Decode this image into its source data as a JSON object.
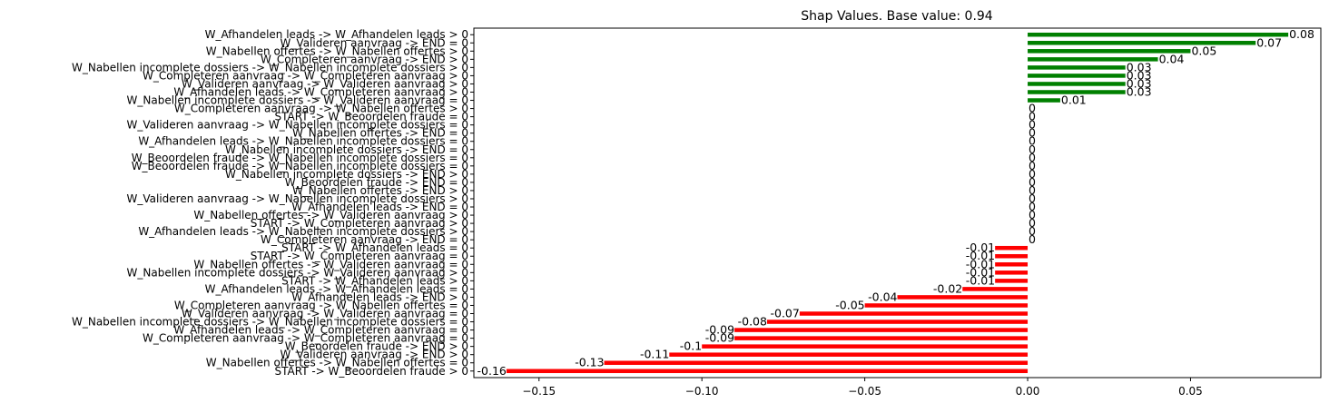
{
  "chart_data": {
    "type": "bar",
    "orientation": "horizontal",
    "title": "Shap Values. Base value: 0.94",
    "xlabel": "",
    "ylabel": "",
    "xlim": [
      -0.17,
      0.09
    ],
    "grid": false,
    "colors": {
      "positive": "#008000",
      "negative": "#ff0000"
    },
    "xticks": [
      {
        "value": -0.15,
        "label": "−0.15"
      },
      {
        "value": -0.1,
        "label": "−0.10"
      },
      {
        "value": -0.05,
        "label": "−0.05"
      },
      {
        "value": 0.0,
        "label": "0.00"
      },
      {
        "value": 0.05,
        "label": "0.05"
      }
    ],
    "bars": [
      {
        "label": "W_Afhandelen leads -> W_Afhandelen leads > 0",
        "value": 0.08,
        "text": "0.08"
      },
      {
        "label": "W_Valideren aanvraag -> END = 0",
        "value": 0.07,
        "text": "0.07"
      },
      {
        "label": "W_Nabellen offertes -> W_Nabellen offertes > 0",
        "value": 0.05,
        "text": "0.05"
      },
      {
        "label": "W_Completeren aanvraag -> END > 0",
        "value": 0.04,
        "text": "0.04"
      },
      {
        "label": "W_Nabellen incomplete dossiers -> W_Nabellen incomplete dossiers > 0",
        "value": 0.03,
        "text": "0.03"
      },
      {
        "label": "W_Completeren aanvraag -> W_Completeren aanvraag > 0",
        "value": 0.03,
        "text": "0.03"
      },
      {
        "label": "W_Valideren aanvraag -> W_Valideren aanvraag > 0",
        "value": 0.03,
        "text": "0.03"
      },
      {
        "label": "W_Afhandelen leads -> W_Completeren aanvraag > 0",
        "value": 0.03,
        "text": "0.03"
      },
      {
        "label": "W_Nabellen incomplete dossiers -> W_Valideren aanvraag = 0",
        "value": 0.01,
        "text": "0.01"
      },
      {
        "label": "W_Completeren aanvraag -> W_Nabellen offertes > 0",
        "value": 0,
        "text": "0"
      },
      {
        "label": "START -> W_Beoordelen fraude = 0",
        "value": 0,
        "text": "0"
      },
      {
        "label": "W_Valideren aanvraag -> W_Nabellen incomplete dossiers = 0",
        "value": 0,
        "text": "0"
      },
      {
        "label": "W_Nabellen offertes -> END = 0",
        "value": 0,
        "text": "0"
      },
      {
        "label": "W_Afhandelen leads -> W_Nabellen incomplete dossiers = 0",
        "value": 0,
        "text": "0"
      },
      {
        "label": "W_Nabellen incomplete dossiers -> END = 0",
        "value": 0,
        "text": "0"
      },
      {
        "label": "W_Beoordelen fraude -> W_Nabellen incomplete dossiers = 0",
        "value": 0,
        "text": "0"
      },
      {
        "label": "W_Beoordelen fraude -> W_Nabellen incomplete dossiers = 0",
        "value": 0,
        "text": "0"
      },
      {
        "label": "W_Nabellen incomplete dossiers -> END > 0",
        "value": 0,
        "text": "0"
      },
      {
        "label": "W_Beoordelen fraude -> END = 0",
        "value": 0,
        "text": "0"
      },
      {
        "label": "W_Nabellen offertes -> END > 0",
        "value": 0,
        "text": "0"
      },
      {
        "label": "W_Valideren aanvraag -> W_Nabellen incomplete dossiers > 0",
        "value": 0,
        "text": "0"
      },
      {
        "label": "W_Afhandelen leads -> END = 0",
        "value": 0,
        "text": "0"
      },
      {
        "label": "W_Nabellen offertes -> W_Valideren aanvraag > 0",
        "value": 0,
        "text": "0"
      },
      {
        "label": "START -> W_Completeren aanvraag > 0",
        "value": 0,
        "text": "0"
      },
      {
        "label": "W_Afhandelen leads -> W_Nabellen incomplete dossiers > 0",
        "value": 0,
        "text": "0"
      },
      {
        "label": "W_Completeren aanvraag -> END = 0",
        "value": 0,
        "text": "0"
      },
      {
        "label": "START -> W_Afhandelen leads = 0",
        "value": -0.01,
        "text": "-0.01"
      },
      {
        "label": "START -> W_Completeren aanvraag = 0",
        "value": -0.01,
        "text": "-0.01"
      },
      {
        "label": "W_Nabellen offertes -> W_Valideren aanvraag = 0",
        "value": -0.01,
        "text": "-0.01"
      },
      {
        "label": "W_Nabellen incomplete dossiers -> W_Valideren aanvraag > 0",
        "value": -0.01,
        "text": "-0.01"
      },
      {
        "label": "START -> W_Afhandelen leads > 0",
        "value": -0.01,
        "text": "-0.01"
      },
      {
        "label": "W_Afhandelen leads -> W_Afhandelen leads = 0",
        "value": -0.02,
        "text": "-0.02"
      },
      {
        "label": "W_Afhandelen leads -> END > 0",
        "value": -0.04,
        "text": "-0.04"
      },
      {
        "label": "W_Completeren aanvraag -> W_Nabellen offertes = 0",
        "value": -0.05,
        "text": "-0.05"
      },
      {
        "label": "W_Valideren aanvraag -> W_Valideren aanvraag = 0",
        "value": -0.07,
        "text": "-0.07"
      },
      {
        "label": "W_Nabellen incomplete dossiers -> W_Nabellen incomplete dossiers = 0",
        "value": -0.08,
        "text": "-0.08"
      },
      {
        "label": "W_Afhandelen leads -> W_Completeren aanvraag = 0",
        "value": -0.09,
        "text": "-0.09"
      },
      {
        "label": "W_Completeren aanvraag -> W_Completeren aanvraag = 0",
        "value": -0.09,
        "text": "-0.09"
      },
      {
        "label": "W_Beoordelen fraude -> END > 0",
        "value": -0.1,
        "text": "-0.1"
      },
      {
        "label": "W_Valideren aanvraag -> END > 0",
        "value": -0.11,
        "text": "-0.11"
      },
      {
        "label": "W_Nabellen offertes -> W_Nabellen offertes = 0",
        "value": -0.13,
        "text": "-0.13"
      },
      {
        "label": "START -> W_Beoordelen fraude > 0",
        "value": -0.16,
        "text": "-0.16"
      }
    ]
  }
}
